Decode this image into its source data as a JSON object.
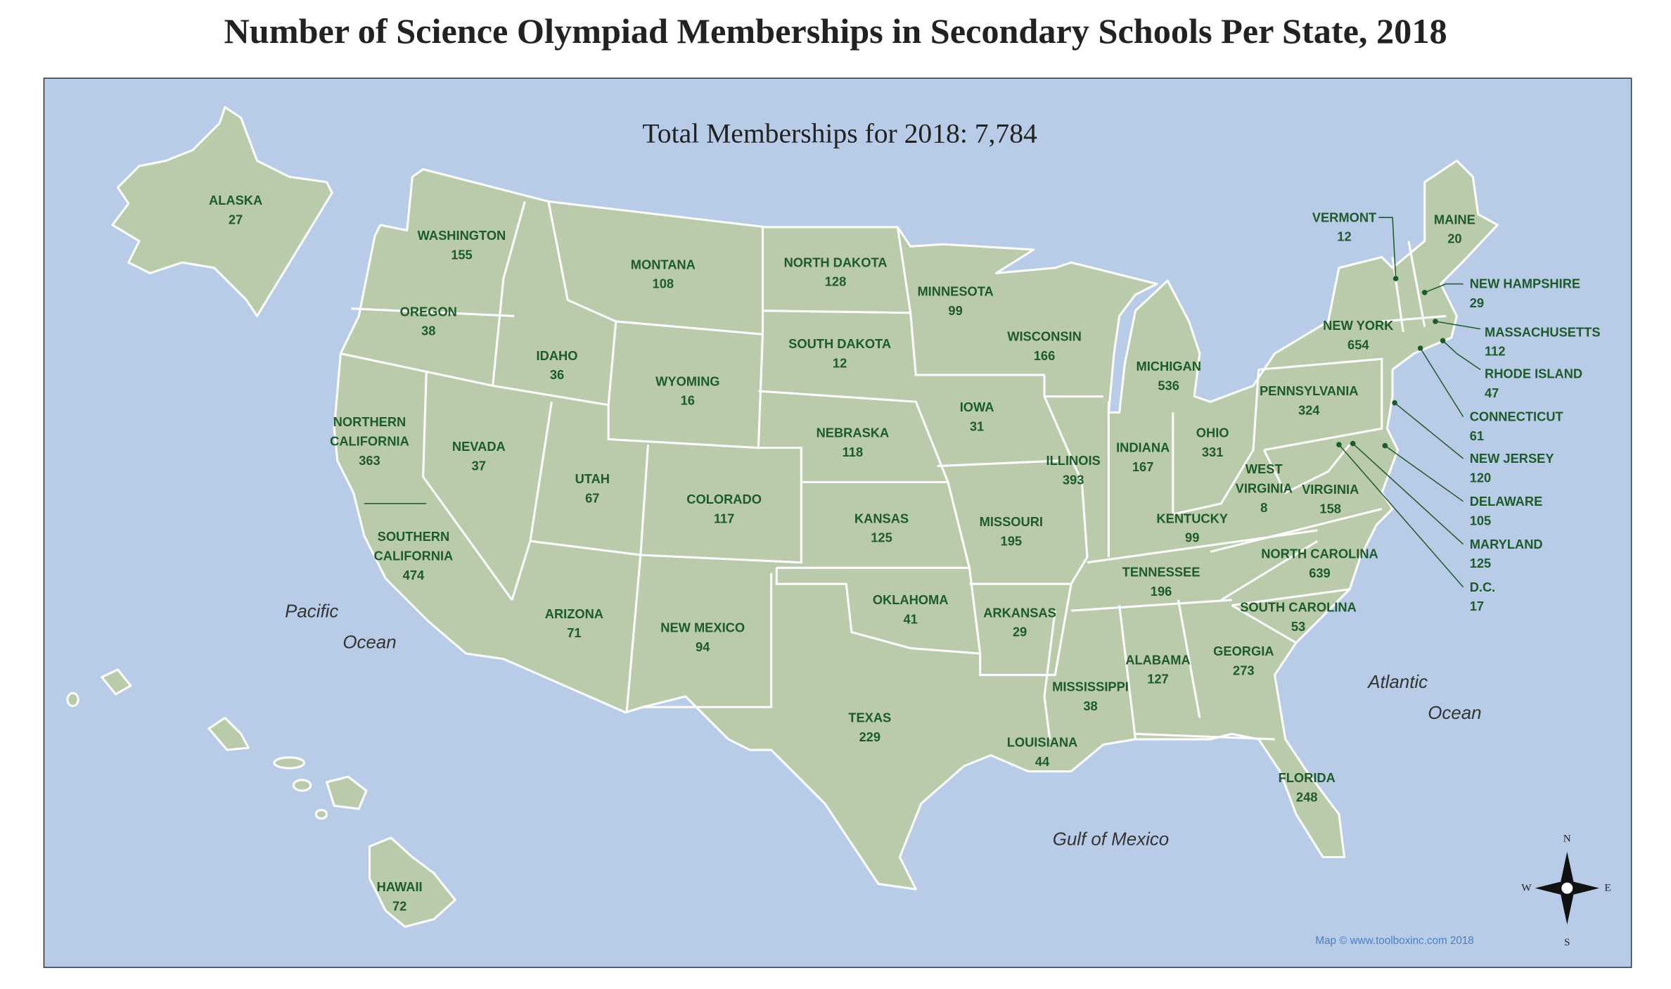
{
  "title": "Number of Science Olympiad Memberships in Secondary Schools Per State, 2018",
  "subtitle": "Total Memberships for 2018: 7,784",
  "states": [
    {
      "name": "ALASKA",
      "value": 27
    },
    {
      "name": "WASHINGTON",
      "value": 155
    },
    {
      "name": "OREGON",
      "value": 38
    },
    {
      "name": "NORTHERN CALIFORNIA",
      "value": 363
    },
    {
      "name": "SOUTHERN CALIFORNIA",
      "value": 474
    },
    {
      "name": "NEVADA",
      "value": 37
    },
    {
      "name": "IDAHO",
      "value": 36
    },
    {
      "name": "MONTANA",
      "value": 108
    },
    {
      "name": "WYOMING",
      "value": 16
    },
    {
      "name": "UTAH",
      "value": 67
    },
    {
      "name": "ARIZONA",
      "value": 71
    },
    {
      "name": "COLORADO",
      "value": 117
    },
    {
      "name": "NEW MEXICO",
      "value": 94
    },
    {
      "name": "NORTH DAKOTA",
      "value": 128
    },
    {
      "name": "SOUTH DAKOTA",
      "value": 12
    },
    {
      "name": "NEBRASKA",
      "value": 118
    },
    {
      "name": "KANSAS",
      "value": 125
    },
    {
      "name": "OKLAHOMA",
      "value": 41
    },
    {
      "name": "TEXAS",
      "value": 229
    },
    {
      "name": "MINNESOTA",
      "value": 99
    },
    {
      "name": "IOWA",
      "value": 31
    },
    {
      "name": "MISSOURI",
      "value": 195
    },
    {
      "name": "ARKANSAS",
      "value": 29
    },
    {
      "name": "LOUISIANA",
      "value": 44
    },
    {
      "name": "WISCONSIN",
      "value": 166
    },
    {
      "name": "ILLINOIS",
      "value": 393
    },
    {
      "name": "MICHIGAN",
      "value": 536
    },
    {
      "name": "INDIANA",
      "value": 167
    },
    {
      "name": "OHIO",
      "value": 331
    },
    {
      "name": "KENTUCKY",
      "value": 99
    },
    {
      "name": "TENNESSEE",
      "value": 196
    },
    {
      "name": "MISSISSIPPI",
      "value": 38
    },
    {
      "name": "ALABAMA",
      "value": 127
    },
    {
      "name": "GEORGIA",
      "value": 273
    },
    {
      "name": "FLORIDA",
      "value": 248
    },
    {
      "name": "SOUTH CAROLINA",
      "value": 53
    },
    {
      "name": "NORTH CAROLINA",
      "value": 639
    },
    {
      "name": "VIRGINIA",
      "value": 158
    },
    {
      "name": "WEST VIRGINIA",
      "value": 8
    },
    {
      "name": "PENNSYLVANIA",
      "value": 324
    },
    {
      "name": "NEW YORK",
      "value": 654
    },
    {
      "name": "VERMONT",
      "value": 12
    },
    {
      "name": "MAINE",
      "value": 20
    },
    {
      "name": "NEW HAMPSHIRE",
      "value": 29
    },
    {
      "name": "MASSACHUSETTS",
      "value": 112
    },
    {
      "name": "RHODE ISLAND",
      "value": 47
    },
    {
      "name": "CONNECTICUT",
      "value": 61
    },
    {
      "name": "NEW JERSEY",
      "value": 120
    },
    {
      "name": "DELAWARE",
      "value": 105
    },
    {
      "name": "MARYLAND",
      "value": 125
    },
    {
      "name": "D.C.",
      "value": 17
    },
    {
      "name": "HAWAII",
      "value": 72
    }
  ],
  "water_labels": [
    "Pacific",
    "Ocean",
    "Atlantic",
    "Ocean",
    "Gulf of Mexico"
  ],
  "compass": {
    "n": "N",
    "s": "S",
    "e": "E",
    "w": "W"
  },
  "credit": "Map © www.toolboxinc.com 2018"
}
